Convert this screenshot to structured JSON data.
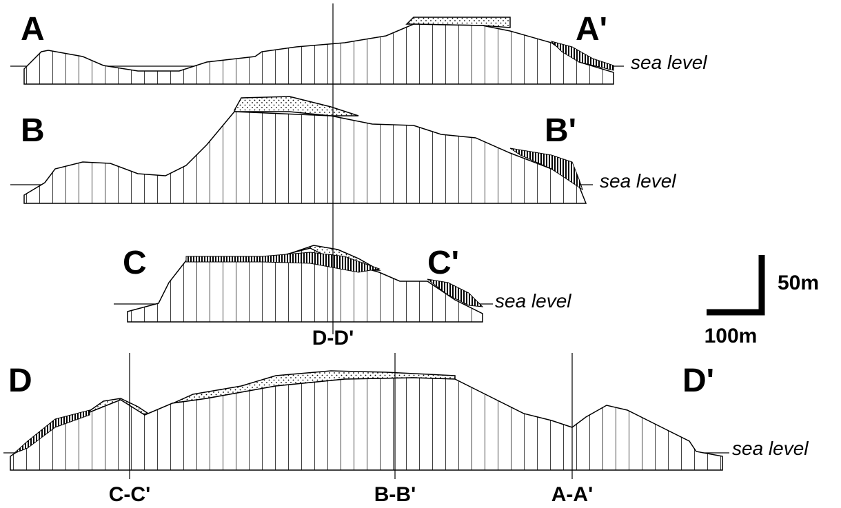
{
  "sections": [
    {
      "start": "A",
      "end": "A'",
      "sea_level": "sea level"
    },
    {
      "start": "B",
      "end": "B'",
      "sea_level": "sea level"
    },
    {
      "start": "C",
      "end": "C'",
      "sea_level": "sea level"
    },
    {
      "start": "D",
      "end": "D'",
      "sea_level": "sea level"
    }
  ],
  "cross_markers": [
    "D-D'",
    "C-C'",
    "B-B'",
    "A-A'"
  ],
  "scale": {
    "vertical": "50m",
    "horizontal": "100m"
  }
}
